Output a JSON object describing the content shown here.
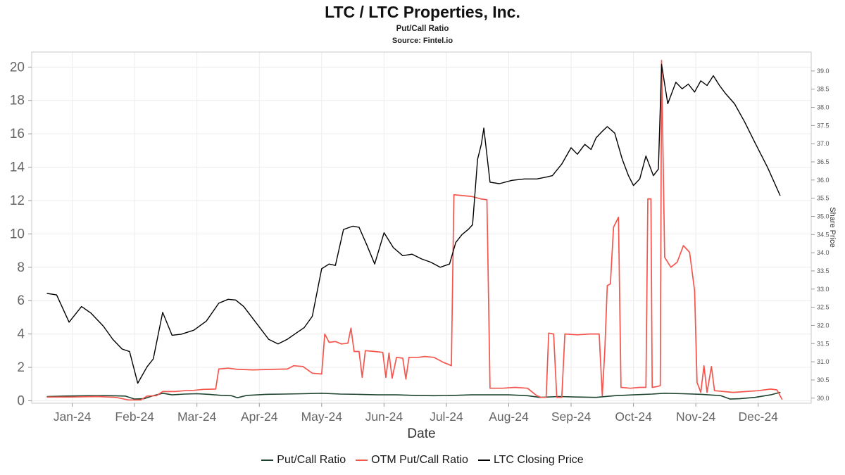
{
  "chart_data": {
    "type": "line",
    "title": "LTC / LTC Properties, Inc.",
    "subtitle": "Put/Call Ratio",
    "source": "Source: Fintel.io",
    "grid": true,
    "legend_position": "bottom",
    "x_axis": {
      "label": "Date",
      "range": [
        -0.15,
        12.35
      ],
      "tick_positions": [
        0.5,
        1.5,
        2.5,
        3.5,
        4.5,
        5.5,
        6.5,
        7.5,
        8.5,
        9.5,
        10.5,
        11.5
      ],
      "tick_labels": [
        "Jan-24",
        "Feb-24",
        "Mar-24",
        "Apr-24",
        "May-24",
        "Jun-24",
        "Jul-24",
        "Aug-24",
        "Sep-24",
        "Oct-24",
        "Nov-24",
        "Dec-24"
      ]
    },
    "left_axis": {
      "ticks": [
        0,
        2,
        4,
        6,
        8,
        10,
        12,
        14,
        16,
        18,
        20
      ],
      "range": [
        -0.15,
        20.9
      ]
    },
    "right_axis": {
      "label": "Share Price",
      "ticks": [
        30.0,
        30.5,
        31.0,
        31.5,
        32.0,
        32.5,
        33.0,
        33.5,
        34.0,
        34.5,
        35.0,
        35.5,
        36.0,
        36.5,
        37.0,
        37.5,
        38.0,
        38.5,
        39.0
      ],
      "range": [
        29.86,
        39.52
      ]
    },
    "series": [
      {
        "name": "Put/Call Ratio",
        "color": "#1c432e",
        "axis": "left",
        "width": 1.6,
        "points": [
          [
            0.1,
            0.25
          ],
          [
            0.4,
            0.28
          ],
          [
            0.8,
            0.3
          ],
          [
            1.1,
            0.3
          ],
          [
            1.35,
            0.28
          ],
          [
            1.5,
            0.1
          ],
          [
            1.65,
            0.12
          ],
          [
            1.8,
            0.3
          ],
          [
            1.95,
            0.45
          ],
          [
            2.1,
            0.35
          ],
          [
            2.3,
            0.4
          ],
          [
            2.5,
            0.42
          ],
          [
            2.7,
            0.38
          ],
          [
            2.9,
            0.32
          ],
          [
            3.05,
            0.3
          ],
          [
            3.15,
            0.18
          ],
          [
            3.3,
            0.32
          ],
          [
            3.6,
            0.38
          ],
          [
            3.9,
            0.4
          ],
          [
            4.2,
            0.42
          ],
          [
            4.5,
            0.45
          ],
          [
            4.8,
            0.4
          ],
          [
            5.1,
            0.38
          ],
          [
            5.4,
            0.35
          ],
          [
            5.7,
            0.35
          ],
          [
            6.0,
            0.32
          ],
          [
            6.3,
            0.3
          ],
          [
            6.6,
            0.32
          ],
          [
            6.9,
            0.35
          ],
          [
            7.2,
            0.35
          ],
          [
            7.5,
            0.35
          ],
          [
            7.8,
            0.3
          ],
          [
            8.0,
            0.2
          ],
          [
            8.3,
            0.25
          ],
          [
            8.6,
            0.22
          ],
          [
            8.9,
            0.2
          ],
          [
            9.2,
            0.3
          ],
          [
            9.5,
            0.35
          ],
          [
            9.8,
            0.4
          ],
          [
            10.0,
            0.45
          ],
          [
            10.3,
            0.42
          ],
          [
            10.6,
            0.38
          ],
          [
            10.9,
            0.3
          ],
          [
            11.05,
            0.1
          ],
          [
            11.2,
            0.12
          ],
          [
            11.45,
            0.2
          ],
          [
            11.7,
            0.35
          ],
          [
            11.85,
            0.5
          ]
        ]
      },
      {
        "name": "OTM Put/Call Ratio",
        "color": "#f4564e",
        "axis": "left",
        "width": 1.7,
        "points": [
          [
            0.1,
            0.22
          ],
          [
            0.5,
            0.22
          ],
          [
            0.9,
            0.25
          ],
          [
            1.2,
            0.2
          ],
          [
            1.4,
            0.05
          ],
          [
            1.6,
            0.05
          ],
          [
            1.7,
            0.28
          ],
          [
            1.85,
            0.3
          ],
          [
            1.95,
            0.55
          ],
          [
            2.15,
            0.55
          ],
          [
            2.3,
            0.6
          ],
          [
            2.45,
            0.62
          ],
          [
            2.6,
            0.68
          ],
          [
            2.8,
            0.7
          ],
          [
            2.85,
            1.9
          ],
          [
            3.0,
            1.95
          ],
          [
            3.15,
            1.88
          ],
          [
            3.4,
            1.85
          ],
          [
            3.7,
            1.88
          ],
          [
            3.95,
            1.9
          ],
          [
            4.05,
            2.1
          ],
          [
            4.2,
            2.05
          ],
          [
            4.35,
            1.65
          ],
          [
            4.5,
            1.6
          ],
          [
            4.55,
            4.0
          ],
          [
            4.62,
            3.5
          ],
          [
            4.72,
            3.55
          ],
          [
            4.82,
            3.4
          ],
          [
            4.92,
            3.45
          ],
          [
            4.97,
            4.35
          ],
          [
            5.02,
            2.95
          ],
          [
            5.1,
            2.95
          ],
          [
            5.15,
            1.4
          ],
          [
            5.2,
            3.0
          ],
          [
            5.35,
            2.95
          ],
          [
            5.48,
            2.9
          ],
          [
            5.53,
            1.4
          ],
          [
            5.58,
            2.85
          ],
          [
            5.63,
            1.35
          ],
          [
            5.7,
            2.6
          ],
          [
            5.8,
            2.55
          ],
          [
            5.85,
            1.3
          ],
          [
            5.9,
            2.6
          ],
          [
            6.05,
            2.6
          ],
          [
            6.15,
            2.65
          ],
          [
            6.3,
            2.6
          ],
          [
            6.45,
            2.3
          ],
          [
            6.52,
            2.2
          ],
          [
            6.58,
            2.1
          ],
          [
            6.62,
            12.35
          ],
          [
            6.75,
            12.3
          ],
          [
            6.9,
            12.25
          ],
          [
            7.05,
            12.1
          ],
          [
            7.15,
            12.05
          ],
          [
            7.2,
            0.75
          ],
          [
            7.4,
            0.75
          ],
          [
            7.6,
            0.8
          ],
          [
            7.8,
            0.75
          ],
          [
            7.95,
            0.3
          ],
          [
            8.02,
            0.2
          ],
          [
            8.1,
            0.2
          ],
          [
            8.14,
            4.05
          ],
          [
            8.22,
            4.0
          ],
          [
            8.27,
            0.2
          ],
          [
            8.35,
            0.2
          ],
          [
            8.4,
            4.0
          ],
          [
            8.6,
            3.95
          ],
          [
            8.8,
            4.0
          ],
          [
            8.95,
            4.0
          ],
          [
            9.0,
            0.3
          ],
          [
            9.04,
            3.0
          ],
          [
            9.08,
            6.9
          ],
          [
            9.13,
            7.0
          ],
          [
            9.18,
            10.4
          ],
          [
            9.26,
            11.0
          ],
          [
            9.3,
            0.8
          ],
          [
            9.45,
            0.75
          ],
          [
            9.6,
            0.8
          ],
          [
            9.7,
            0.8
          ],
          [
            9.73,
            12.1
          ],
          [
            9.78,
            12.1
          ],
          [
            9.8,
            0.8
          ],
          [
            9.88,
            0.85
          ],
          [
            9.93,
            0.9
          ],
          [
            9.95,
            20.4
          ],
          [
            10.0,
            8.6
          ],
          [
            10.1,
            8.0
          ],
          [
            10.2,
            8.3
          ],
          [
            10.3,
            9.3
          ],
          [
            10.4,
            8.9
          ],
          [
            10.48,
            6.6
          ],
          [
            10.52,
            1.1
          ],
          [
            10.58,
            0.5
          ],
          [
            10.63,
            2.1
          ],
          [
            10.68,
            0.5
          ],
          [
            10.75,
            2.05
          ],
          [
            10.8,
            0.6
          ],
          [
            10.95,
            0.55
          ],
          [
            11.1,
            0.5
          ],
          [
            11.3,
            0.55
          ],
          [
            11.5,
            0.6
          ],
          [
            11.7,
            0.7
          ],
          [
            11.8,
            0.65
          ],
          [
            11.88,
            0.1
          ]
        ]
      },
      {
        "name": "LTC Closing Price",
        "color": "#000000",
        "axis": "right",
        "width": 1.4,
        "points": [
          [
            0.1,
            32.88
          ],
          [
            0.25,
            32.84
          ],
          [
            0.45,
            32.09
          ],
          [
            0.65,
            32.52
          ],
          [
            0.8,
            32.34
          ],
          [
            1.0,
            31.98
          ],
          [
            1.15,
            31.62
          ],
          [
            1.3,
            31.35
          ],
          [
            1.42,
            31.28
          ],
          [
            1.55,
            30.41
          ],
          [
            1.7,
            30.86
          ],
          [
            1.8,
            31.08
          ],
          [
            1.95,
            32.36
          ],
          [
            2.1,
            31.73
          ],
          [
            2.25,
            31.76
          ],
          [
            2.45,
            31.87
          ],
          [
            2.65,
            32.12
          ],
          [
            2.85,
            32.61
          ],
          [
            3.0,
            32.72
          ],
          [
            3.12,
            32.7
          ],
          [
            3.25,
            32.52
          ],
          [
            3.45,
            32.07
          ],
          [
            3.65,
            31.62
          ],
          [
            3.8,
            31.49
          ],
          [
            3.95,
            31.62
          ],
          [
            4.1,
            31.8
          ],
          [
            4.22,
            31.94
          ],
          [
            4.35,
            32.25
          ],
          [
            4.5,
            33.56
          ],
          [
            4.62,
            33.69
          ],
          [
            4.72,
            33.65
          ],
          [
            4.85,
            34.64
          ],
          [
            5.0,
            34.73
          ],
          [
            5.1,
            34.7
          ],
          [
            5.22,
            34.23
          ],
          [
            5.35,
            33.69
          ],
          [
            5.5,
            34.55
          ],
          [
            5.65,
            34.14
          ],
          [
            5.8,
            33.92
          ],
          [
            5.95,
            33.96
          ],
          [
            6.1,
            33.83
          ],
          [
            6.25,
            33.74
          ],
          [
            6.4,
            33.6
          ],
          [
            6.55,
            33.69
          ],
          [
            6.65,
            34.28
          ],
          [
            6.75,
            34.5
          ],
          [
            6.85,
            34.64
          ],
          [
            6.92,
            34.77
          ],
          [
            7.0,
            36.57
          ],
          [
            7.06,
            36.98
          ],
          [
            7.1,
            37.43
          ],
          [
            7.2,
            35.94
          ],
          [
            7.35,
            35.9
          ],
          [
            7.55,
            35.99
          ],
          [
            7.75,
            36.03
          ],
          [
            7.95,
            36.03
          ],
          [
            8.1,
            36.08
          ],
          [
            8.2,
            36.12
          ],
          [
            8.35,
            36.44
          ],
          [
            8.5,
            36.89
          ],
          [
            8.6,
            36.71
          ],
          [
            8.72,
            36.98
          ],
          [
            8.82,
            36.84
          ],
          [
            8.9,
            37.16
          ],
          [
            9.0,
            37.34
          ],
          [
            9.08,
            37.47
          ],
          [
            9.2,
            37.29
          ],
          [
            9.32,
            36.57
          ],
          [
            9.42,
            36.12
          ],
          [
            9.5,
            35.85
          ],
          [
            9.6,
            36.03
          ],
          [
            9.7,
            36.66
          ],
          [
            9.82,
            36.12
          ],
          [
            9.9,
            36.3
          ],
          [
            9.95,
            39.18
          ],
          [
            10.05,
            38.1
          ],
          [
            10.18,
            38.69
          ],
          [
            10.28,
            38.51
          ],
          [
            10.38,
            38.64
          ],
          [
            10.48,
            38.42
          ],
          [
            10.58,
            38.73
          ],
          [
            10.68,
            38.6
          ],
          [
            10.78,
            38.87
          ],
          [
            10.88,
            38.6
          ],
          [
            10.98,
            38.37
          ],
          [
            11.12,
            38.1
          ],
          [
            11.28,
            37.61
          ],
          [
            11.45,
            37.02
          ],
          [
            11.65,
            36.35
          ],
          [
            11.85,
            35.58
          ]
        ]
      }
    ]
  }
}
